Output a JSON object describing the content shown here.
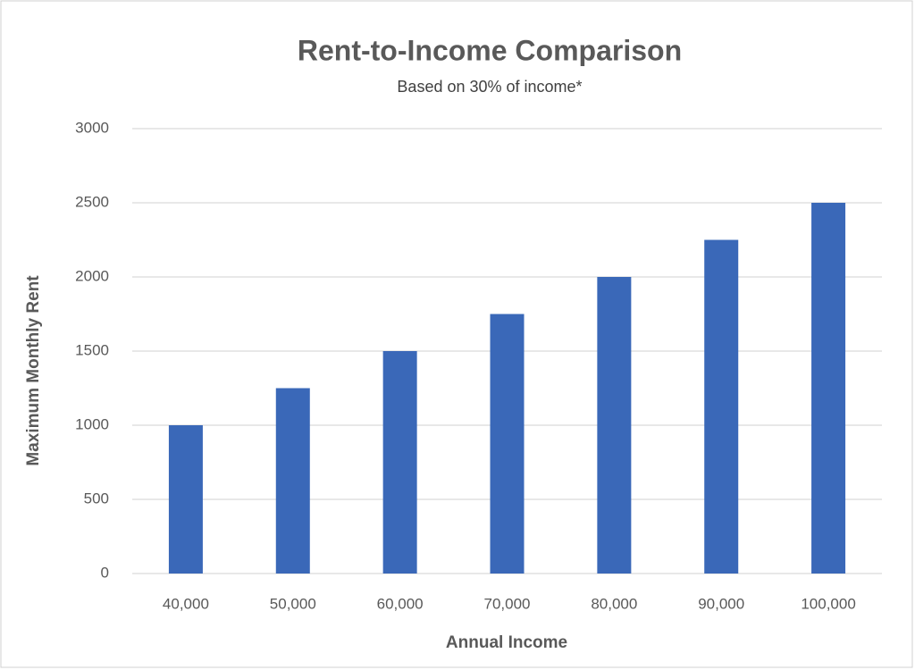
{
  "chart_data": {
    "type": "bar",
    "title": "Rent-to-Income Comparison",
    "subtitle": "Based on 30% of income*",
    "x_label": "Annual Income",
    "y_label": "Maximum Monthly Rent",
    "categories": [
      "40,000",
      "50,000",
      "60,000",
      "70,000",
      "80,000",
      "90,000",
      "100,000"
    ],
    "values": [
      1000,
      1250,
      1500,
      1750,
      2000,
      2250,
      2500
    ],
    "color": "#3a68b8",
    "ylim": [
      0,
      3000
    ],
    "yticks": [
      0,
      500,
      1000,
      1500,
      2000,
      2500,
      3000
    ],
    "grid": true
  }
}
